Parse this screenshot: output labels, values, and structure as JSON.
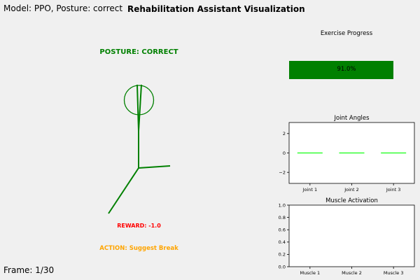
{
  "header": {
    "model_line": "Model: PPO, Posture: correct",
    "title": "Rehabilitation Assistant Visualization"
  },
  "figure": {
    "posture_label": "POSTURE: CORRECT",
    "reward_label": "REWARD: -1.0",
    "action_label": "ACTION: Suggest Break",
    "frame_label": "Frame: 1/30"
  },
  "colors": {
    "posture": "#008000",
    "reward": "#ff0000",
    "action": "#ffa500",
    "progress": "#008000",
    "joint_line": "#33ff33"
  },
  "chart_data": [
    {
      "type": "bar",
      "title": "Exercise Progress",
      "value": 0.91,
      "value_label": "91.0%",
      "xlim": [
        0,
        1
      ]
    },
    {
      "type": "line",
      "title": "Joint Angles",
      "categories": [
        "Joint 1",
        "Joint 2",
        "Joint 3"
      ],
      "values": [
        0,
        0,
        0
      ],
      "ylim": [
        -3.14,
        3.14
      ],
      "yticks": [
        -2,
        0,
        2
      ],
      "ytick_labels": [
        "−2",
        "0",
        "2"
      ]
    },
    {
      "type": "bar",
      "title": "Muscle Activation",
      "categories": [
        "Muscle 1",
        "Muscle 2",
        "Muscle 3"
      ],
      "values": [
        0,
        0,
        0
      ],
      "ylim": [
        0,
        1
      ],
      "yticks": [
        0,
        0.2,
        0.4,
        0.6,
        0.8,
        1.0
      ],
      "ytick_labels": [
        "0.0",
        "0.2",
        "0.4",
        "0.6",
        "0.8",
        "1.0"
      ]
    }
  ]
}
